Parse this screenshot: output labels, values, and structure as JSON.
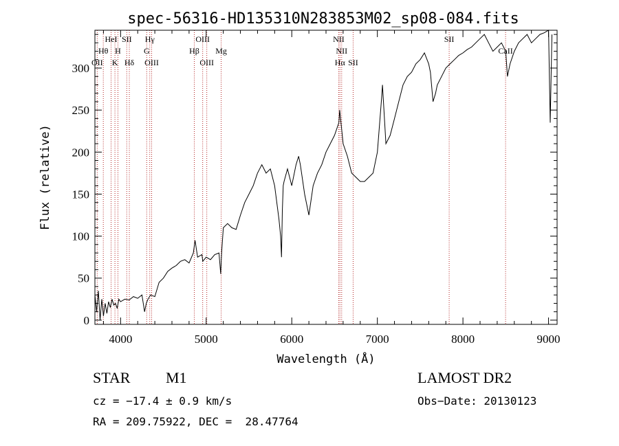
{
  "chart_data": {
    "type": "line",
    "title": "spec-56316-HD135310N283853M02_sp08-084.fits",
    "xlabel": "Wavelength (Å)",
    "ylabel": "Flux (relative)",
    "xlim": [
      3700,
      9100
    ],
    "ylim": [
      -5,
      345
    ],
    "x_ticks": [
      4000,
      5000,
      6000,
      7000,
      8000,
      9000
    ],
    "y_ticks": [
      0,
      50,
      100,
      150,
      200,
      250,
      300
    ],
    "grid": false,
    "line_color": "#000000",
    "marker_color": "#b22222",
    "spectral_lines": [
      {
        "label": "OII",
        "wavelength": 3727,
        "row": 3
      },
      {
        "label": "Hθ",
        "wavelength": 3798,
        "row": 2
      },
      {
        "label": "HeI",
        "wavelength": 3889,
        "row": 1
      },
      {
        "label": "K",
        "wavelength": 3934,
        "row": 3
      },
      {
        "label": "H",
        "wavelength": 3969,
        "row": 2
      },
      {
        "label": "SII",
        "wavelength": 4072,
        "row": 1
      },
      {
        "label": "Hδ",
        "wavelength": 4102,
        "row": 3
      },
      {
        "label": "Hγ",
        "wavelength": 4341,
        "row": 1
      },
      {
        "label": "G",
        "wavelength": 4305,
        "row": 2
      },
      {
        "label": "OIII",
        "wavelength": 4363,
        "row": 3
      },
      {
        "label": "Hβ",
        "wavelength": 4861,
        "row": 2
      },
      {
        "label": "OIII",
        "wavelength": 4959,
        "row": 1
      },
      {
        "label": "OIII",
        "wavelength": 5007,
        "row": 3
      },
      {
        "label": "Mg",
        "wavelength": 5175,
        "row": 2
      },
      {
        "label": "NII",
        "wavelength": 6548,
        "row": 1
      },
      {
        "label": "NII",
        "wavelength": 6583,
        "row": 2
      },
      {
        "label": "Hα",
        "wavelength": 6563,
        "row": 3
      },
      {
        "label": "SII",
        "wavelength": 6717,
        "row": 3
      },
      {
        "label": "SII",
        "wavelength": 7839,
        "row": 1
      },
      {
        "label": "CaII",
        "wavelength": 8498,
        "row": 2
      }
    ],
    "series": [
      {
        "x": [
          3700,
          3720,
          3740,
          3760,
          3780,
          3800,
          3820,
          3840,
          3860,
          3880,
          3900,
          3920,
          3940,
          3960,
          3980,
          4000,
          4050,
          4100,
          4150,
          4200,
          4250,
          4280,
          4300,
          4320,
          4350,
          4400,
          4450,
          4500,
          4550,
          4600,
          4650,
          4700,
          4750,
          4800,
          4850,
          4870,
          4900,
          4950,
          4960,
          5000,
          5050,
          5100,
          5150,
          5170,
          5180,
          5200,
          5250,
          5300,
          5350,
          5400,
          5450,
          5500,
          5550,
          5600,
          5650,
          5700,
          5750,
          5800,
          5850,
          5870,
          5880,
          5890,
          5900,
          5910,
          5950,
          6000,
          6050,
          6080,
          6100,
          6150,
          6200,
          6250,
          6300,
          6350,
          6400,
          6450,
          6500,
          6550,
          6560,
          6580,
          6600,
          6650,
          6700,
          6750,
          6800,
          6850,
          6900,
          6950,
          7000,
          7050,
          7060,
          7080,
          7100,
          7150,
          7200,
          7250,
          7300,
          7350,
          7400,
          7450,
          7500,
          7550,
          7600,
          7620,
          7650,
          7680,
          7700,
          7750,
          7800,
          7850,
          7900,
          7950,
          8000,
          8050,
          8100,
          8150,
          8200,
          8250,
          8300,
          8350,
          8400,
          8450,
          8500,
          8520,
          8550,
          8600,
          8650,
          8700,
          8750,
          8800,
          8850,
          8900,
          8950,
          9000,
          9020,
          9040
        ],
        "y": [
          30,
          10,
          35,
          0,
          25,
          5,
          20,
          8,
          22,
          15,
          25,
          18,
          20,
          14,
          25,
          22,
          25,
          24,
          28,
          26,
          30,
          10,
          20,
          25,
          30,
          28,
          45,
          50,
          58,
          62,
          65,
          70,
          72,
          68,
          80,
          95,
          75,
          78,
          70,
          75,
          72,
          78,
          80,
          55,
          80,
          110,
          115,
          110,
          108,
          125,
          140,
          150,
          160,
          175,
          185,
          175,
          180,
          160,
          120,
          100,
          75,
          130,
          160,
          165,
          180,
          160,
          185,
          195,
          185,
          150,
          125,
          160,
          175,
          185,
          200,
          210,
          220,
          235,
          250,
          230,
          210,
          195,
          175,
          170,
          165,
          165,
          170,
          175,
          200,
          265,
          280,
          245,
          210,
          220,
          240,
          260,
          280,
          290,
          295,
          305,
          310,
          318,
          305,
          295,
          260,
          270,
          280,
          290,
          300,
          305,
          310,
          315,
          318,
          322,
          325,
          330,
          335,
          340,
          330,
          320,
          325,
          330,
          320,
          290,
          305,
          320,
          330,
          335,
          340,
          330,
          335,
          340,
          342,
          345,
          235,
          340
        ],
        "name": ""
      }
    ]
  },
  "info": {
    "object_type": "STAR",
    "subclass": "M1",
    "survey": "LAMOST DR2",
    "cz": "cz = −17.4 ± 0.9 km/s",
    "obs_date": "Obs−Date: 20130123",
    "radec": "RA = 209.75922, DEC =  28.47764"
  }
}
